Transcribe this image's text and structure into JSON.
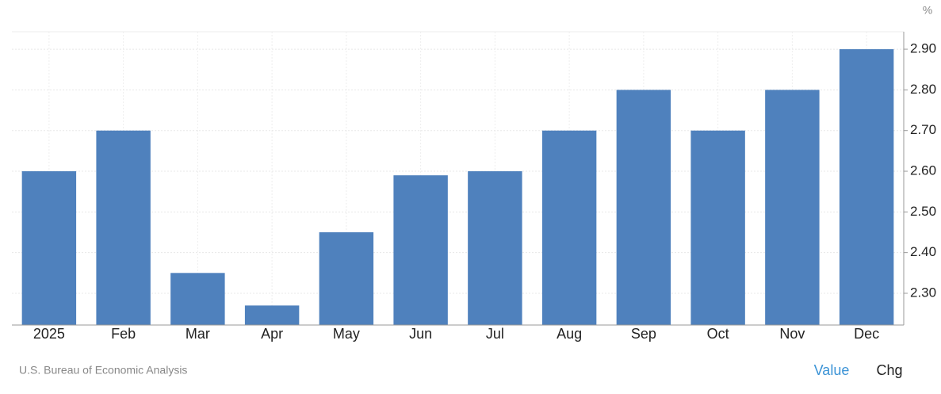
{
  "chart_data": {
    "type": "bar",
    "unit": "%",
    "categories": [
      "2025",
      "Feb",
      "Mar",
      "Apr",
      "May",
      "Jun",
      "Jul",
      "Aug",
      "Sep",
      "Oct",
      "Nov",
      "Dec"
    ],
    "values": [
      2.6,
      2.7,
      2.35,
      2.27,
      2.45,
      2.59,
      2.6,
      2.7,
      2.8,
      2.7,
      2.8,
      2.9
    ],
    "color": "#4f81bd",
    "ylim": [
      2.222,
      2.943
    ],
    "yticks": [
      {
        "value": 2.3,
        "label": "2.30"
      },
      {
        "value": 2.4,
        "label": "2.40"
      },
      {
        "value": 2.5,
        "label": "2.50"
      },
      {
        "value": 2.6,
        "label": "2.60"
      },
      {
        "value": 2.7,
        "label": "2.70"
      },
      {
        "value": 2.8,
        "label": "2.80"
      },
      {
        "value": 2.9,
        "label": "2.90"
      }
    ],
    "grid": true,
    "source": "U.S. Bureau of Economic Analysis"
  },
  "controls": [
    "Value",
    "Chg"
  ]
}
